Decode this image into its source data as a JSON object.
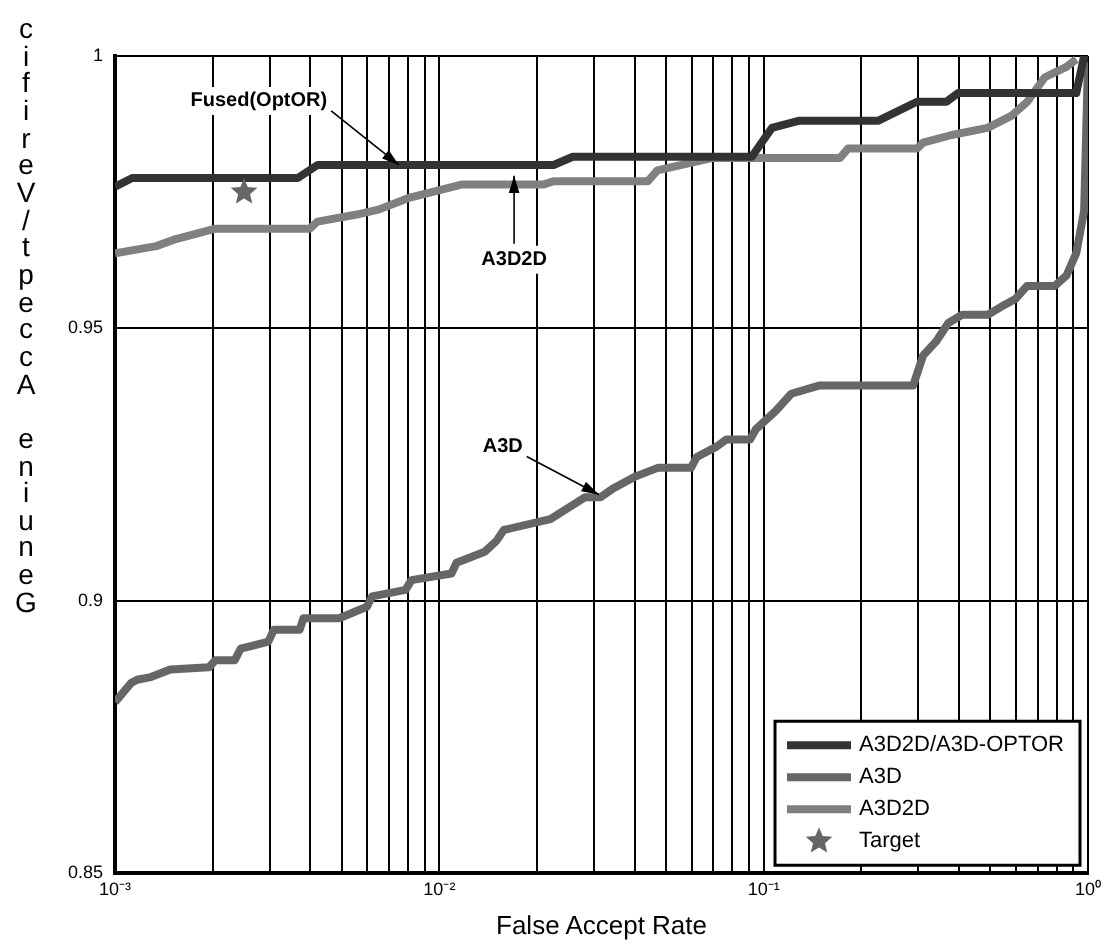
{
  "chart_data": {
    "type": "line",
    "xlabel": "False Accept Rate",
    "ylabel": "Genuine Accept/Verific",
    "log": "x",
    "xlim": [
      0.001,
      1
    ],
    "ylim": [
      0.85,
      1
    ],
    "xticks": [
      {
        "value": 0.001,
        "label": "10⁻³"
      },
      {
        "value": 0.002,
        "label": null
      },
      {
        "value": 0.003,
        "label": null
      },
      {
        "value": 0.004,
        "label": null
      },
      {
        "value": 0.005,
        "label": null
      },
      {
        "value": 0.006,
        "label": null
      },
      {
        "value": 0.007,
        "label": null
      },
      {
        "value": 0.008,
        "label": null
      },
      {
        "value": 0.009,
        "label": null
      },
      {
        "value": 0.01,
        "label": "10⁻²"
      },
      {
        "value": 0.02,
        "label": null
      },
      {
        "value": 0.03,
        "label": null
      },
      {
        "value": 0.04,
        "label": null
      },
      {
        "value": 0.05,
        "label": null
      },
      {
        "value": 0.06,
        "label": null
      },
      {
        "value": 0.07,
        "label": null
      },
      {
        "value": 0.08,
        "label": null
      },
      {
        "value": 0.09,
        "label": null
      },
      {
        "value": 0.1,
        "label": "10⁻¹"
      },
      {
        "value": 0.2,
        "label": null
      },
      {
        "value": 0.3,
        "label": null
      },
      {
        "value": 0.4,
        "label": null
      },
      {
        "value": 0.5,
        "label": null
      },
      {
        "value": 0.6,
        "label": null
      },
      {
        "value": 0.7,
        "label": null
      },
      {
        "value": 0.8,
        "label": null
      },
      {
        "value": 0.9,
        "label": null
      },
      {
        "value": 1,
        "label": "10⁰"
      }
    ],
    "yticks": [
      0.85,
      0.9,
      0.95,
      1
    ],
    "grid": true,
    "legend": "bottom right",
    "marker": "none",
    "line_style": "solid",
    "annotations": [
      {
        "text": "Fused(OptOR)",
        "x": 0.0075,
        "y": 0.98
      },
      {
        "text": "A3D2D",
        "x": 0.017,
        "y": 0.978
      },
      {
        "text": "A3D",
        "x": 0.031,
        "y": 0.9195
      }
    ],
    "series": [
      {
        "name": "A3D2D/A3D-OPTOR",
        "color": "#333333",
        "x": [
          0.001,
          0.00113,
          0.00366,
          0.00421,
          0.0225,
          0.0258,
          0.0919,
          0.106,
          0.128,
          0.225,
          0.297,
          0.366,
          0.398,
          0.92,
          0.973,
          1
        ],
        "values": [
          0.976,
          0.9776,
          0.9776,
          0.98,
          0.98,
          0.9815,
          0.9815,
          0.9868,
          0.9881,
          0.9881,
          0.9916,
          0.9916,
          0.9932,
          0.9932,
          1,
          1
        ]
      },
      {
        "name": "A3D",
        "color": "#666666",
        "x": [
          0.001,
          0.00112,
          0.00117,
          0.00129,
          0.00148,
          0.00195,
          0.00204,
          0.00234,
          0.00244,
          0.00297,
          0.00309,
          0.00371,
          0.00381,
          0.00491,
          0.00598,
          0.0062,
          0.00787,
          0.0082,
          0.0109,
          0.0113,
          0.0138,
          0.015,
          0.0158,
          0.022,
          0.0281,
          0.0314,
          0.0341,
          0.0398,
          0.0471,
          0.0597,
          0.0622,
          0.0716,
          0.0767,
          0.0908,
          0.0946,
          0.1087,
          0.1216,
          0.148,
          0.289,
          0.31,
          0.341,
          0.371,
          0.409,
          0.491,
          0.541,
          0.597,
          0.649,
          0.789,
          0.858,
          0.92,
          0.973,
          1
        ],
        "values": [
          0.8814,
          0.8849,
          0.8855,
          0.886,
          0.8874,
          0.8878,
          0.8891,
          0.8891,
          0.8912,
          0.8925,
          0.8947,
          0.8947,
          0.8968,
          0.8968,
          0.8989,
          0.9008,
          0.902,
          0.9038,
          0.905,
          0.907,
          0.909,
          0.911,
          0.913,
          0.915,
          0.919,
          0.919,
          0.9205,
          0.9227,
          0.9244,
          0.9244,
          0.9264,
          0.9283,
          0.9296,
          0.9296,
          0.9315,
          0.9348,
          0.938,
          0.9395,
          0.9395,
          0.945,
          0.9477,
          0.951,
          0.9525,
          0.9525,
          0.954,
          0.9554,
          0.9578,
          0.9578,
          0.9597,
          0.9638,
          0.9716,
          0.999
        ]
      },
      {
        "name": "A3D2D",
        "color": "#808080",
        "x": [
          0.001,
          0.00134,
          0.00154,
          0.00204,
          0.00398,
          0.00421,
          0.00556,
          0.00649,
          0.008,
          0.0117,
          0.0209,
          0.0225,
          0.0439,
          0.047,
          0.0696,
          0.172,
          0.182,
          0.297,
          0.31,
          0.38,
          0.49,
          0.58,
          0.65,
          0.736,
          0.858,
          0.92
        ],
        "values": [
          0.9638,
          0.9651,
          0.9664,
          0.9683,
          0.9683,
          0.9696,
          0.9709,
          0.9718,
          0.9739,
          0.9764,
          0.9764,
          0.977,
          0.977,
          0.979,
          0.9813,
          0.9813,
          0.983,
          0.983,
          0.9841,
          0.9855,
          0.9868,
          0.989,
          0.9916,
          0.9961,
          0.998,
          0.9994
        ]
      },
      {
        "name": "Target",
        "type": "scatter",
        "marker": "star",
        "color": "#666666",
        "x": [
          0.0025
        ],
        "values": [
          0.975
        ]
      }
    ]
  }
}
